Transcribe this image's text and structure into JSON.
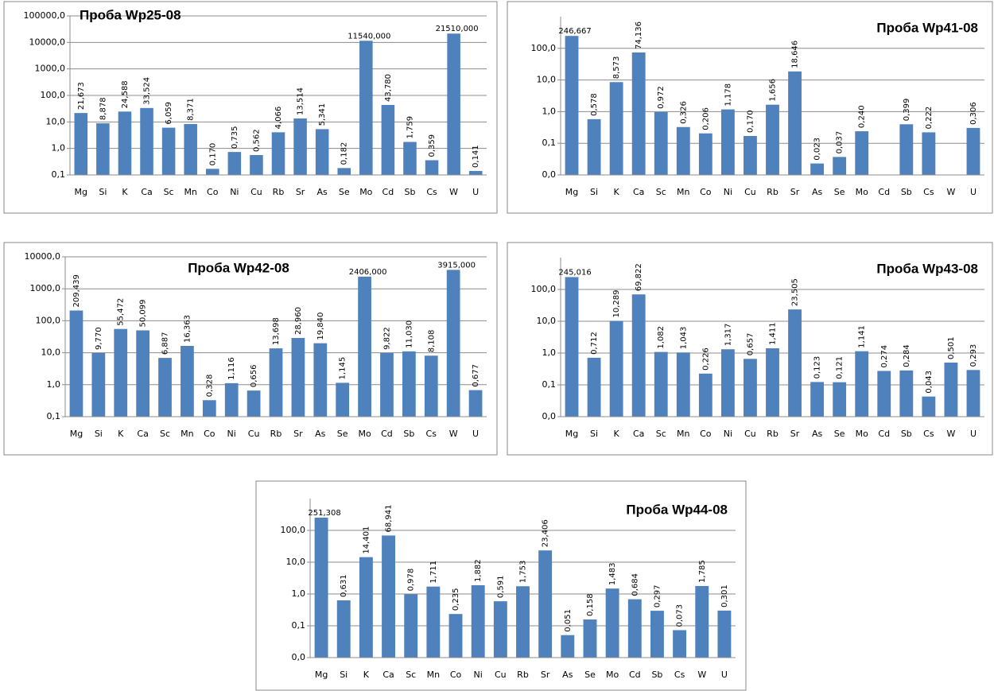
{
  "chart_data": [
    {
      "type": "bar",
      "title": "Проба Wp25-08",
      "log": true,
      "grid": true,
      "color": "#4f81bd",
      "categories": [
        "Mg",
        "Si",
        "K",
        "Ca",
        "Sc",
        "Mn",
        "Co",
        "Ni",
        "Cu",
        "Rb",
        "Sr",
        "As",
        "Se",
        "Mo",
        "Cd",
        "Sb",
        "Cs",
        "W",
        "U"
      ],
      "values": [
        21.673,
        8.878,
        24.588,
        33.524,
        6.059,
        8.371,
        0.17,
        0.735,
        0.562,
        4.066,
        13.514,
        5.341,
        0.182,
        11540.0,
        43.78,
        1.759,
        0.359,
        21510.0,
        0.141
      ],
      "value_labels": [
        "21,673",
        "8,878",
        "24,588",
        "33,524",
        "6,059",
        "8,371",
        "0,170",
        "0,735",
        "0,562",
        "4,066",
        "13,514",
        "5,341",
        "0,182",
        "11540,000",
        "43,780",
        "1,759",
        "0,359",
        "21510,000",
        "0,141"
      ],
      "ylim": [
        0.1,
        100000
      ],
      "yticks": [
        {
          "value": 0.1,
          "label": "0,1"
        },
        {
          "value": 1,
          "label": "1,0"
        },
        {
          "value": 10,
          "label": "10,0"
        },
        {
          "value": 100,
          "label": "100,0"
        },
        {
          "value": 1000,
          "label": "1000,0"
        },
        {
          "value": 10000,
          "label": "10000,0"
        },
        {
          "value": 100000,
          "label": "100000,0"
        }
      ]
    },
    {
      "type": "bar",
      "title": "Проба Wp41-08",
      "log": true,
      "grid": true,
      "color": "#4f81bd",
      "categories": [
        "Mg",
        "Si",
        "K",
        "Ca",
        "Sc",
        "Mn",
        "Co",
        "Ni",
        "Cu",
        "Rb",
        "Sr",
        "As",
        "Se",
        "Mo",
        "Cd",
        "Sb",
        "Cs",
        "W",
        "U"
      ],
      "values": [
        246.667,
        0.578,
        8.573,
        74.136,
        0.972,
        0.326,
        0.206,
        1.178,
        0.17,
        1.656,
        18.646,
        0.023,
        0.037,
        0.24,
        null,
        0.399,
        0.222,
        null,
        0.306
      ],
      "value_labels": [
        "246,667",
        "0,578",
        "8,573",
        "74,136",
        "0,972",
        "0,326",
        "0,206",
        "1,178",
        "0,170",
        "1,656",
        "18,646",
        "0,023",
        "0,037",
        "0,240",
        null,
        "0,399",
        "0,222",
        null,
        "0,306"
      ],
      "ylim": [
        0.01,
        1000
      ],
      "yticks": [
        {
          "value": 0.01,
          "label": "0,0"
        },
        {
          "value": 0.1,
          "label": "0,1"
        },
        {
          "value": 1,
          "label": "1,0"
        },
        {
          "value": 10,
          "label": "10,0"
        },
        {
          "value": 100,
          "label": "100,0"
        }
      ]
    },
    {
      "type": "bar",
      "title": "Проба Wp42-08",
      "log": true,
      "grid": true,
      "color": "#4f81bd",
      "categories": [
        "Mg",
        "Si",
        "K",
        "Ca",
        "Sc",
        "Mn",
        "Co",
        "Ni",
        "Cu",
        "Rb",
        "Sr",
        "As",
        "Se",
        "Mo",
        "Cd",
        "Sb",
        "Cs",
        "W",
        "U"
      ],
      "values": [
        209.439,
        9.77,
        55.472,
        50.099,
        6.887,
        16.363,
        0.328,
        1.116,
        0.656,
        13.698,
        28.96,
        19.84,
        1.145,
        2406.0,
        9.822,
        11.03,
        8.108,
        3915.0,
        0.677
      ],
      "value_labels": [
        "209,439",
        "9,770",
        "55,472",
        "50,099",
        "6,887",
        "16,363",
        "0,328",
        "1,116",
        "0,656",
        "13,698",
        "28,960",
        "19,840",
        "1,145",
        "2406,000",
        "9,822",
        "11,030",
        "8,108",
        "3915,000",
        "0,677"
      ],
      "ylim": [
        0.1,
        10000
      ],
      "yticks": [
        {
          "value": 0.1,
          "label": "0,1"
        },
        {
          "value": 1,
          "label": "1,0"
        },
        {
          "value": 10,
          "label": "10,0"
        },
        {
          "value": 100,
          "label": "100,0"
        },
        {
          "value": 1000,
          "label": "1000,0"
        },
        {
          "value": 10000,
          "label": "10000,0"
        }
      ]
    },
    {
      "type": "bar",
      "title": "Проба Wp43-08",
      "log": true,
      "grid": true,
      "color": "#4f81bd",
      "categories": [
        "Mg",
        "Si",
        "K",
        "Ca",
        "Sc",
        "Mn",
        "Co",
        "Ni",
        "Cu",
        "Rb",
        "Sr",
        "As",
        "Se",
        "Mo",
        "Cd",
        "Sb",
        "Cs",
        "W",
        "U"
      ],
      "values": [
        245.016,
        0.712,
        10.289,
        69.822,
        1.082,
        1.043,
        0.226,
        1.317,
        0.657,
        1.411,
        23.505,
        0.123,
        0.121,
        1.141,
        0.274,
        0.284,
        0.043,
        0.501,
        0.293
      ],
      "value_labels": [
        "245,016",
        "0,712",
        "10,289",
        "69,822",
        "1,082",
        "1,043",
        "0,226",
        "1,317",
        "0,657",
        "1,411",
        "23,505",
        "0,123",
        "0,121",
        "1,141",
        "0,274",
        "0,284",
        "0,043",
        "0,501",
        "0,293"
      ],
      "ylim": [
        0.01,
        1000
      ],
      "yticks": [
        {
          "value": 0.01,
          "label": "0,0"
        },
        {
          "value": 0.1,
          "label": "0,1"
        },
        {
          "value": 1,
          "label": "1,0"
        },
        {
          "value": 10,
          "label": "10,0"
        },
        {
          "value": 100,
          "label": "100,0"
        }
      ]
    },
    {
      "type": "bar",
      "title": "Проба Wp44-08",
      "log": true,
      "grid": true,
      "color": "#4f81bd",
      "categories": [
        "Mg",
        "Si",
        "K",
        "Ca",
        "Sc",
        "Mn",
        "Co",
        "Ni",
        "Cu",
        "Rb",
        "Sr",
        "As",
        "Se",
        "Mo",
        "Cd",
        "Sb",
        "Cs",
        "W",
        "U"
      ],
      "values": [
        251.308,
        0.631,
        14.401,
        68.941,
        0.978,
        1.711,
        0.235,
        1.882,
        0.591,
        1.753,
        23.406,
        0.051,
        0.158,
        1.483,
        0.684,
        0.297,
        0.073,
        1.785,
        0.301
      ],
      "value_labels": [
        "251,308",
        "0,631",
        "14,401",
        "68,941",
        "0,978",
        "1,711",
        "0,235",
        "1,882",
        "0,591",
        "1,753",
        "23,406",
        "0,051",
        "0,158",
        "1,483",
        "0,684",
        "0,297",
        "0,073",
        "1,785",
        "0,301"
      ],
      "ylim": [
        0.01,
        1000
      ],
      "yticks": [
        {
          "value": 0.01,
          "label": "0,0"
        },
        {
          "value": 0.1,
          "label": "0,1"
        },
        {
          "value": 1,
          "label": "1,0"
        },
        {
          "value": 10,
          "label": "10,0"
        },
        {
          "value": 100,
          "label": "100,0"
        }
      ]
    }
  ]
}
